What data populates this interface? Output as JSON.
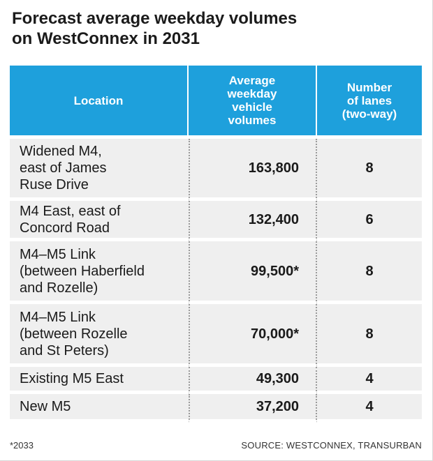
{
  "title_lines": [
    "Forecast average weekday volumes",
    "on WestConnex in 2031"
  ],
  "chart_data": {
    "type": "table",
    "title": "Forecast average weekday volumes on WestConnex in 2031",
    "columns": [
      {
        "label_lines": [
          "Location"
        ]
      },
      {
        "label_lines": [
          "Average",
          "weekday",
          "vehicle",
          "volumes"
        ]
      },
      {
        "label_lines": [
          "Number",
          "of lanes",
          "(two-way)"
        ]
      }
    ],
    "rows": [
      {
        "location_lines": [
          "Widened M4,",
          "east of James",
          "Ruse Drive"
        ],
        "volume": "163,800",
        "lanes": "8"
      },
      {
        "location_lines": [
          "M4 East, east of",
          "Concord Road"
        ],
        "volume": "132,400",
        "lanes": "6"
      },
      {
        "location_lines": [
          "M4–M5 Link",
          "(between Haberfield",
          "and Rozelle)"
        ],
        "volume": "99,500*",
        "lanes": "8"
      },
      {
        "location_lines": [
          "M4–M5 Link",
          "(between Rozelle",
          "and St Peters)"
        ],
        "volume": "70,000*",
        "lanes": "8"
      },
      {
        "location_lines": [
          "Existing M5 East"
        ],
        "volume": "49,300",
        "lanes": "4"
      },
      {
        "location_lines": [
          "New M5"
        ],
        "volume": "37,200",
        "lanes": "4"
      }
    ]
  },
  "footnote": "*2033",
  "source": "SOURCE: WESTCONNEX,  TRANSURBAN",
  "colors": {
    "header_bg": "#1ea0dc",
    "row_bg": "#efefef"
  }
}
